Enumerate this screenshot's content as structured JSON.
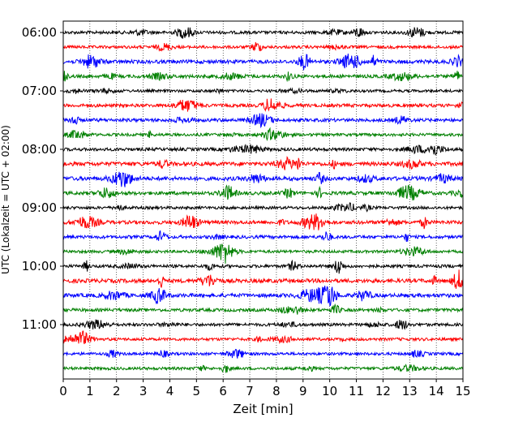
{
  "chart_data": {
    "type": "line",
    "title": "",
    "xlabel": "Zeit  [min]",
    "ylabel": "UTC (Lokalzeit = UTC + 02:00)",
    "xlim": [
      0,
      15
    ],
    "x_ticks": [
      "0",
      "1",
      "2",
      "3",
      "4",
      "5",
      "6",
      "7",
      "8",
      "9",
      "10",
      "11",
      "12",
      "13",
      "14",
      "15"
    ],
    "y_ticks": [
      "06:00",
      "07:00",
      "08:00",
      "09:00",
      "10:00",
      "11:00"
    ],
    "grid": "vertical dotted",
    "trace_interval_minutes": 15,
    "start_time": "06:00",
    "colors": [
      "#000000",
      "#ff0000",
      "#0000ff",
      "#008000"
    ],
    "series": [
      {
        "start": "06:00",
        "color": "#000000",
        "level": 0.55
      },
      {
        "start": "06:15",
        "color": "#ff0000",
        "level": 0.45
      },
      {
        "start": "06:30",
        "color": "#0000ff",
        "level": 0.85
      },
      {
        "start": "06:45",
        "color": "#008000",
        "level": 0.7
      },
      {
        "start": "07:00",
        "color": "#000000",
        "level": 0.35
      },
      {
        "start": "07:15",
        "color": "#ff0000",
        "level": 0.65
      },
      {
        "start": "07:30",
        "color": "#0000ff",
        "level": 0.7
      },
      {
        "start": "07:45",
        "color": "#008000",
        "level": 0.45
      },
      {
        "start": "08:00",
        "color": "#000000",
        "level": 0.6
      },
      {
        "start": "08:15",
        "color": "#ff0000",
        "level": 1.0
      },
      {
        "start": "08:30",
        "color": "#0000ff",
        "level": 1.0
      },
      {
        "start": "08:45",
        "color": "#008000",
        "level": 0.75
      },
      {
        "start": "09:00",
        "color": "#000000",
        "level": 0.45
      },
      {
        "start": "09:15",
        "color": "#ff0000",
        "level": 0.8
      },
      {
        "start": "09:30",
        "color": "#0000ff",
        "level": 0.6
      },
      {
        "start": "09:45",
        "color": "#008000",
        "level": 0.45
      },
      {
        "start": "10:00",
        "color": "#000000",
        "level": 0.55
      },
      {
        "start": "10:15",
        "color": "#ff0000",
        "level": 1.0
      },
      {
        "start": "10:30",
        "color": "#0000ff",
        "level": 0.9
      },
      {
        "start": "10:45",
        "color": "#008000",
        "level": 0.6
      },
      {
        "start": "11:00",
        "color": "#000000",
        "level": 0.5
      },
      {
        "start": "11:15",
        "color": "#ff0000",
        "level": 0.45
      },
      {
        "start": "11:30",
        "color": "#0000ff",
        "level": 0.45
      },
      {
        "start": "11:45",
        "color": "#008000",
        "level": 0.45
      }
    ]
  }
}
